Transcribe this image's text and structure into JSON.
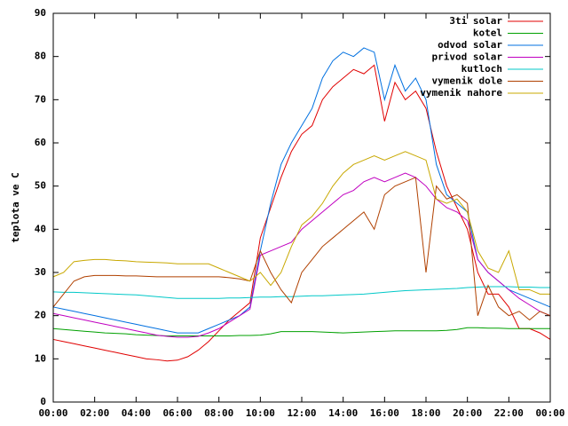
{
  "chart_data": {
    "type": "line",
    "ylabel": "teplota ve C",
    "xlim": [
      0,
      24
    ],
    "xticks": [
      {
        "value": 0,
        "label": "00:00"
      },
      {
        "value": 2,
        "label": "02:00"
      },
      {
        "value": 4,
        "label": "04:00"
      },
      {
        "value": 6,
        "label": "06:00"
      },
      {
        "value": 8,
        "label": "08:00"
      },
      {
        "value": 10,
        "label": "10:00"
      },
      {
        "value": 12,
        "label": "12:00"
      },
      {
        "value": 14,
        "label": "14:00"
      },
      {
        "value": 16,
        "label": "16:00"
      },
      {
        "value": 18,
        "label": "18:00"
      },
      {
        "value": 20,
        "label": "20:00"
      },
      {
        "value": 22,
        "label": "22:00"
      },
      {
        "value": 24,
        "label": "00:00"
      }
    ],
    "ylim": [
      0,
      90
    ],
    "yticks": [
      0,
      10,
      20,
      30,
      40,
      50,
      60,
      70,
      80,
      90
    ],
    "legend": "top-right",
    "x": [
      0,
      0.5,
      1,
      1.5,
      2,
      2.5,
      3,
      3.5,
      4,
      4.5,
      5,
      5.5,
      6,
      6.5,
      7,
      7.5,
      8,
      8.5,
      9,
      9.5,
      10,
      10.5,
      11,
      11.5,
      12,
      12.5,
      13,
      13.5,
      14,
      14.5,
      15,
      15.5,
      16,
      16.5,
      17,
      17.5,
      18,
      18.5,
      19,
      19.5,
      20,
      20.5,
      21,
      21.5,
      22,
      22.5,
      23,
      23.5,
      24
    ],
    "series": [
      {
        "name": "3ti solar",
        "color": "#e00000",
        "values": [
          14.5,
          14,
          13.5,
          13,
          12.5,
          12,
          11.5,
          11,
          10.5,
          10,
          9.8,
          9.5,
          9.7,
          10.5,
          12,
          14,
          16.5,
          19,
          21,
          23,
          38,
          45,
          52,
          58,
          62,
          64,
          70,
          73,
          75,
          77,
          76,
          78,
          65,
          74,
          70,
          72,
          68,
          58,
          50,
          45,
          40,
          30,
          25,
          25,
          22,
          17,
          17,
          16,
          14.5
        ]
      },
      {
        "name": "kotel",
        "color": "#00a000",
        "values": [
          17,
          16.8,
          16.6,
          16.4,
          16.2,
          16,
          15.9,
          15.8,
          15.6,
          15.5,
          15.4,
          15.3,
          15.3,
          15.3,
          15.3,
          15.3,
          15.3,
          15.3,
          15.4,
          15.4,
          15.5,
          15.8,
          16.3,
          16.3,
          16.3,
          16.3,
          16.2,
          16.1,
          16,
          16.1,
          16.2,
          16.3,
          16.4,
          16.5,
          16.5,
          16.5,
          16.5,
          16.5,
          16.6,
          16.8,
          17.2,
          17.2,
          17.1,
          17.1,
          17,
          17,
          17,
          17,
          17
        ]
      },
      {
        "name": "odvod solar",
        "color": "#0070e0",
        "values": [
          22,
          21.5,
          21,
          20.5,
          20,
          19.5,
          19,
          18.5,
          18,
          17.5,
          17,
          16.5,
          16,
          16,
          16,
          17,
          18,
          19,
          20,
          22,
          35,
          46,
          55,
          60,
          64,
          68,
          75,
          79,
          81,
          80,
          82,
          81,
          70,
          78,
          72,
          75,
          70,
          55,
          48,
          46,
          44,
          33,
          30,
          28,
          26,
          25,
          24,
          23,
          22
        ]
      },
      {
        "name": "privod solar",
        "color": "#c000c0",
        "values": [
          20.5,
          20,
          19.5,
          19,
          18.5,
          18,
          17.5,
          17,
          16.5,
          16,
          15.5,
          15.2,
          15,
          15,
          15.2,
          16,
          17,
          18.5,
          20,
          21.5,
          34,
          35,
          36,
          37,
          40,
          42,
          44,
          46,
          48,
          49,
          51,
          52,
          51,
          52,
          53,
          52,
          50,
          47,
          45,
          44,
          42,
          33,
          30,
          28,
          26,
          24,
          22.5,
          21,
          20
        ]
      },
      {
        "name": "kutloch",
        "color": "#00c8c8",
        "values": [
          25.5,
          25.4,
          25.4,
          25.3,
          25.2,
          25.1,
          25,
          24.9,
          24.8,
          24.6,
          24.4,
          24.2,
          24,
          24,
          24,
          24,
          24,
          24.1,
          24.1,
          24.2,
          24.3,
          24.3,
          24.4,
          24.4,
          24.5,
          24.6,
          24.6,
          24.7,
          24.8,
          24.9,
          25,
          25.2,
          25.4,
          25.6,
          25.8,
          25.9,
          26,
          26.1,
          26.2,
          26.3,
          26.5,
          26.6,
          26.7,
          26.7,
          26.7,
          26.6,
          26.6,
          26.5,
          26.5
        ]
      },
      {
        "name": "vymenik dole",
        "color": "#b04000",
        "values": [
          22,
          25,
          28,
          29,
          29.3,
          29.3,
          29.3,
          29.2,
          29.2,
          29.1,
          29,
          29,
          29,
          29,
          29,
          29,
          29,
          28.8,
          28.5,
          28,
          35,
          30,
          26,
          23,
          30,
          33,
          36,
          38,
          40,
          42,
          44,
          40,
          48,
          50,
          51,
          52,
          30,
          50,
          47,
          48,
          46,
          20,
          27,
          22,
          20,
          21,
          19,
          21,
          20
        ]
      },
      {
        "name": "vymenik nahore",
        "color": "#c8a800",
        "values": [
          29,
          30,
          32.5,
          32.8,
          33,
          33,
          32.8,
          32.7,
          32.5,
          32.4,
          32.3,
          32.2,
          32,
          32,
          32,
          32,
          31,
          30,
          29,
          28,
          30,
          27,
          30,
          36,
          41,
          43,
          46,
          50,
          53,
          55,
          56,
          57,
          56,
          57,
          58,
          57,
          56,
          47,
          46,
          47,
          44,
          35,
          31,
          30,
          35,
          26,
          26,
          25,
          25
        ]
      }
    ]
  }
}
